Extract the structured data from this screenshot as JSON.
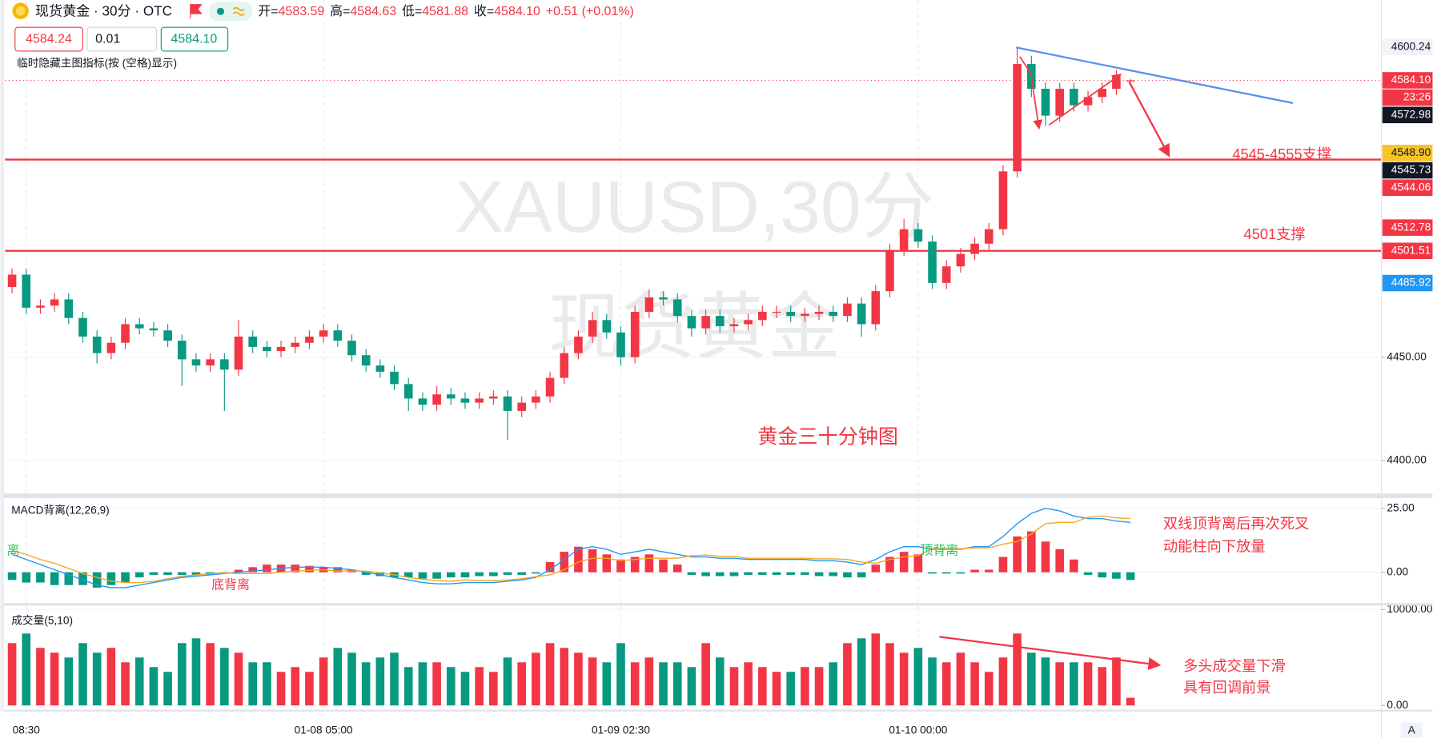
{
  "header": {
    "symbol": "现货黄金 · 30分 · OTC",
    "ohlc": [
      {
        "label": "开=",
        "value": "4583.59"
      },
      {
        "label": "高=",
        "value": "4584.63"
      },
      {
        "label": "低=",
        "value": "4581.88"
      },
      {
        "label": "收=",
        "value": "4584.10"
      }
    ],
    "change": "+0.51 (+0.01%)",
    "sell": "4584.24",
    "qty": "0.01",
    "buy": "4584.10",
    "hint": "临时隐藏主图指标(按 (空格)显示)"
  },
  "watermark": [
    "XAUUSD,30分",
    "现货黄金"
  ],
  "annotations": {
    "main_title": "黄金三十分钟图",
    "support1": "4545-4555支撑",
    "support2": "4501支撑",
    "macd_left": "离",
    "macd_bottom": "底背离",
    "macd_top": "顶背离",
    "macd_note": [
      "双线顶背离后再次死叉",
      "动能柱向下放量"
    ],
    "volume_note": [
      "多头成交量下滑",
      "具有回调前景"
    ]
  },
  "corner": "A",
  "chart_data": [
    {
      "type": "candlestick",
      "categories": [
        null,
        "08:30",
        null,
        null,
        null,
        null,
        null,
        null,
        null,
        null,
        null,
        null,
        null,
        null,
        null,
        null,
        null,
        null,
        null,
        null,
        null,
        null,
        "01-08 05:00",
        null,
        null,
        null,
        null,
        null,
        null,
        null,
        null,
        null,
        null,
        null,
        null,
        null,
        null,
        null,
        null,
        null,
        null,
        null,
        null,
        "01-09 02:30",
        null,
        null,
        null,
        null,
        null,
        null,
        null,
        null,
        null,
        null,
        null,
        null,
        null,
        null,
        null,
        null,
        null,
        null,
        null,
        null,
        "01-10 00:00",
        null,
        null,
        null,
        null,
        null,
        null,
        null,
        null,
        null,
        null,
        null,
        null,
        null,
        null,
        null
      ],
      "open": [
        4484,
        4490,
        4474,
        4475,
        4478,
        4469,
        4460,
        4452,
        4457,
        4466,
        4464,
        4463,
        4458,
        4449,
        4446,
        4449,
        4444,
        4460,
        4455,
        4453,
        4455,
        4457,
        4460,
        4463,
        4458,
        4451,
        4446,
        4443,
        4437,
        4430,
        4427,
        4432,
        4430,
        4428,
        4430,
        4431,
        4424,
        4428,
        4431,
        4440,
        4452,
        4460,
        4468,
        4462,
        4450,
        4472,
        4479,
        4478,
        4470,
        4464,
        4470,
        4465,
        4466,
        4468,
        4472,
        4472,
        4470,
        4471,
        4472,
        4470,
        4476,
        4466,
        4482,
        4502,
        4512,
        4506,
        4486,
        4494,
        4500,
        4505,
        4512,
        4540,
        4592,
        4580,
        4567,
        4580,
        4572,
        4576,
        4580,
        4583.59
      ],
      "high": [
        4493,
        4493,
        4478,
        4481,
        4481,
        4472,
        4463,
        4460,
        4469,
        4469,
        4467,
        4466,
        4461,
        4452,
        4452,
        4452,
        4468,
        4463,
        4458,
        4458,
        4460,
        4463,
        4466,
        4466,
        4461,
        4454,
        4449,
        4446,
        4440,
        4433,
        4436,
        4435,
        4433,
        4433,
        4434,
        4434,
        4431,
        4434,
        4443,
        4455,
        4463,
        4472,
        4471,
        4465,
        4475,
        4483,
        4482,
        4481,
        4473,
        4473,
        4473,
        4469,
        4471,
        4475,
        4475,
        4475,
        4474,
        4475,
        4475,
        4479,
        4479,
        4485,
        4505,
        4517,
        4515,
        4509,
        4497,
        4503,
        4508,
        4515,
        4543,
        4600.24,
        4596,
        4583,
        4583,
        4583,
        4579,
        4583,
        4589,
        4584.63
      ],
      "low": [
        4481,
        4471,
        4471,
        4472,
        4466,
        4457,
        4447,
        4449,
        4454,
        4461,
        4460,
        4455,
        4436,
        4443,
        4443,
        4424,
        4441,
        4452,
        4450,
        4450,
        4452,
        4454,
        4457,
        4455,
        4448,
        4443,
        4440,
        4434,
        4424,
        4424,
        4424,
        4427,
        4425,
        4425,
        4427,
        4410,
        4421,
        4425,
        4428,
        4437,
        4449,
        4457,
        4459,
        4446,
        4447,
        4469,
        4475,
        4467,
        4460,
        4461,
        4462,
        4462,
        4463,
        4465,
        4469,
        4467,
        4467,
        4468,
        4467,
        4467,
        4460,
        4463,
        4479,
        4499,
        4503,
        4483,
        4483,
        4491,
        4497,
        4502,
        4509,
        4537,
        4576,
        4562,
        4564,
        4569,
        4569,
        4573,
        4577,
        4581.88
      ],
      "close": [
        4490,
        4474,
        4475,
        4478,
        4469,
        4460,
        4452,
        4457,
        4466,
        4464,
        4463,
        4458,
        4449,
        4446,
        4449,
        4444,
        4460,
        4455,
        4453,
        4455,
        4457,
        4460,
        4463,
        4458,
        4451,
        4446,
        4443,
        4437,
        4430,
        4427,
        4432,
        4430,
        4428,
        4430,
        4431,
        4424,
        4428,
        4431,
        4440,
        4452,
        4460,
        4468,
        4462,
        4450,
        4472,
        4479,
        4478,
        4470,
        4464,
        4470,
        4465,
        4466,
        4468,
        4472,
        4472,
        4470,
        4471,
        4472,
        4470,
        4476,
        4466,
        4482,
        4502,
        4512,
        4506,
        4486,
        4494,
        4500,
        4505,
        4512,
        4540,
        4592,
        4580,
        4567,
        4580,
        4572,
        4576,
        4580,
        4586,
        4584.1
      ],
      "up_color": "#f23645",
      "down_color": "#089981",
      "ylim": [
        4384,
        4623
      ],
      "yticks": [
        {
          "value": 4400,
          "label": "4400.00"
        },
        {
          "value": 4450,
          "label": "4450.00"
        }
      ],
      "grid": true,
      "levels": [
        {
          "value": 4545.73,
          "color": "#f23645"
        },
        {
          "value": 4501.51,
          "color": "#f23645"
        }
      ],
      "price_tags": [
        {
          "value": 4600.24,
          "label": "4600.24",
          "bg": "#f0f3fa",
          "fg": "#131722"
        },
        {
          "value": 4584.1,
          "label": "4584.10",
          "bg": "#f23645",
          "fg": "#ffffff",
          "countdown": "23:26"
        },
        {
          "value": 4572.98,
          "label": "4572.98",
          "bg": "#131722",
          "fg": "#ffffff"
        },
        {
          "value": 4548.9,
          "label": "4548.90",
          "bg": "#f7c325",
          "fg": "#131722"
        },
        {
          "value": 4545.73,
          "label": "4545.73",
          "bg": "#131722",
          "fg": "#ffffff"
        },
        {
          "value": 4544.06,
          "label": "4544.06",
          "bg": "#f23645",
          "fg": "#ffffff"
        },
        {
          "value": 4512.78,
          "label": "4512.78",
          "bg": "#f23645",
          "fg": "#ffffff"
        },
        {
          "value": 4501.51,
          "label": "4501.51",
          "bg": "#f23645",
          "fg": "#ffffff"
        },
        {
          "value": 4485.92,
          "label": "4485.92",
          "bg": "#2196f3",
          "fg": "#ffffff"
        }
      ]
    },
    {
      "type": "macd",
      "title": "MACD背离(12,26,9)",
      "histogram": [
        -3,
        -4,
        -4,
        -5,
        -5,
        -5,
        -6,
        -5,
        -4,
        -2,
        -1,
        -1,
        -1,
        -1,
        -1,
        -0.5,
        1,
        2,
        3,
        3,
        3,
        2.5,
        2,
        2,
        1,
        -1,
        -1.5,
        -2,
        -2,
        -2.5,
        -2.5,
        -2,
        -2,
        -1.5,
        -1.5,
        -1,
        -1,
        -0.5,
        4,
        8,
        10,
        9,
        7,
        5,
        6,
        7,
        5,
        3,
        -1,
        -1.5,
        -1.5,
        -1.5,
        -1,
        -1,
        -1,
        -1,
        -1,
        -1.5,
        -1.5,
        -2,
        -2,
        3,
        6,
        8,
        7,
        -0.5,
        -0.5,
        -0.5,
        1,
        1,
        6,
        14,
        16,
        12,
        9,
        5,
        -1,
        -2,
        -2.5,
        -3
      ],
      "positive_color": "#f23645",
      "negative_color": "#089981",
      "series": [
        {
          "color": "#2196f3",
          "values": [
            7,
            5,
            3,
            1,
            -1,
            -3,
            -5,
            -6,
            -6,
            -5,
            -4,
            -3,
            -2,
            -1.5,
            -1,
            -0.5,
            0,
            0.5,
            1,
            1.5,
            2,
            2,
            2,
            1.5,
            1,
            0,
            -1,
            -2,
            -3,
            -4,
            -4.5,
            -4.5,
            -4,
            -4,
            -4,
            -3.5,
            -3,
            -2,
            1,
            5,
            9,
            10,
            9,
            7,
            8,
            9,
            8,
            7,
            6,
            6,
            5.5,
            5.5,
            5,
            5,
            5,
            5,
            5,
            4.5,
            4.5,
            4,
            3,
            5,
            8,
            10,
            10,
            9,
            9,
            9,
            10,
            10,
            14,
            19,
            23,
            25,
            24,
            22,
            21,
            21,
            20,
            19.5
          ]
        },
        {
          "color": "#f5a623",
          "values": [
            8.5,
            7,
            5,
            3.5,
            1.5,
            -0.5,
            -2,
            -3.5,
            -4,
            -4,
            -3.5,
            -2.5,
            -1.5,
            -1,
            -0.5,
            -0.25,
            -0.5,
            -0.5,
            -0.5,
            0,
            0.5,
            0.75,
            1,
            0.5,
            0.5,
            0.5,
            -0.25,
            -1,
            -2,
            -2.75,
            -3.25,
            -3.5,
            -3,
            -3.25,
            -3.25,
            -3,
            -2.5,
            -1.75,
            -1,
            1,
            4,
            5.5,
            5.5,
            4.5,
            5,
            5.5,
            5.5,
            5.5,
            6.5,
            6.75,
            6.25,
            6.25,
            5.5,
            5.5,
            5.5,
            5.5,
            5.5,
            5.25,
            5.25,
            5,
            4,
            3.5,
            5,
            6,
            6.5,
            9.25,
            9.25,
            9.25,
            9.5,
            9.5,
            11,
            12,
            15,
            19,
            19.5,
            19.5,
            21.5,
            22,
            21.25,
            21
          ]
        }
      ],
      "ylim": [
        -12,
        29
      ],
      "yticks": [
        {
          "value": 0,
          "label": "0.00"
        },
        {
          "value": 25,
          "label": "25.00"
        }
      ]
    },
    {
      "type": "bar",
      "title": "成交量(5,10)",
      "values": [
        6500,
        7500,
        6000,
        5500,
        5000,
        6500,
        5500,
        6000,
        4500,
        5000,
        4000,
        3500,
        6500,
        7000,
        6500,
        6000,
        5500,
        4500,
        4500,
        3500,
        4000,
        3500,
        5000,
        6000,
        5500,
        4500,
        5000,
        5500,
        4000,
        4500,
        4500,
        4000,
        3500,
        4000,
        3500,
        5000,
        4500,
        5500,
        6500,
        6000,
        5500,
        5000,
        4500,
        6500,
        4500,
        5000,
        4500,
        4500,
        4000,
        6500,
        5000,
        4000,
        4500,
        4000,
        3500,
        3500,
        4000,
        4000,
        4500,
        6500,
        7000,
        7500,
        6500,
        5500,
        6000,
        5000,
        4500,
        5500,
        4500,
        3500,
        5000,
        7500,
        5500,
        5000,
        4500,
        4500,
        4500,
        4000,
        5000,
        800
      ],
      "ylim": [
        -450,
        10400
      ],
      "yticks": [
        {
          "value": 0,
          "label": "0.00"
        },
        {
          "value": 10000,
          "label": "10000.00"
        }
      ]
    }
  ]
}
